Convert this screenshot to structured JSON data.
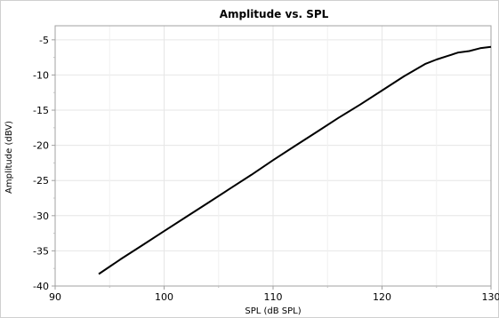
{
  "chart_data": {
    "type": "line",
    "title": "Amplitude vs. SPL",
    "xlabel": "SPL (dB SPL)",
    "ylabel": "Amplitude (dBV)",
    "xlim": [
      90,
      130
    ],
    "ylim": [
      -40,
      -3
    ],
    "xticks": [
      90,
      100,
      110,
      120,
      130
    ],
    "yticks": [
      -40,
      -35,
      -30,
      -25,
      -20,
      -15,
      -10,
      -5
    ],
    "grid": true,
    "legend": "none",
    "series": [
      {
        "color": "#000000",
        "x": [
          94,
          96,
          98,
          100,
          102,
          104,
          106,
          108,
          110,
          112,
          114,
          116,
          118,
          120,
          122,
          124,
          125,
          126,
          127,
          128,
          129,
          130
        ],
        "y": [
          -38.3,
          -36.2,
          -34.2,
          -32.2,
          -30.2,
          -28.2,
          -26.2,
          -24.2,
          -22.1,
          -20.1,
          -18.1,
          -16.1,
          -14.2,
          -12.2,
          -10.2,
          -8.4,
          -7.8,
          -7.3,
          -6.8,
          -6.6,
          -6.2,
          -6.0
        ]
      }
    ]
  }
}
